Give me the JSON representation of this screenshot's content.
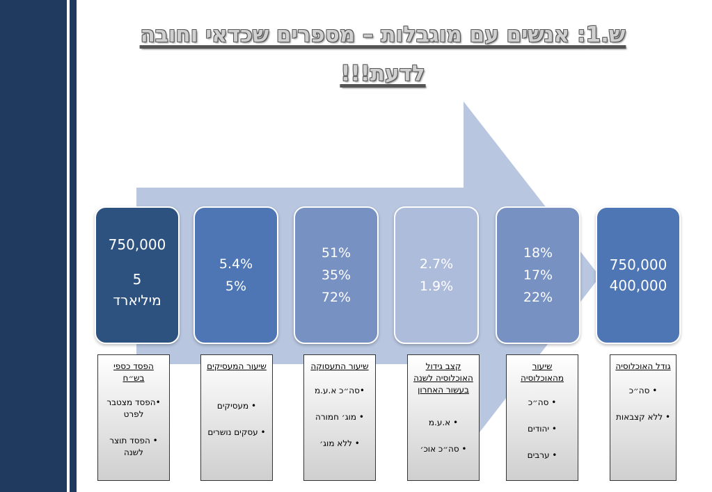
{
  "title": "ש.1: אנשים עם מוגבלות – מספרים שכדאי וחובה לדעת!!!",
  "colors": {
    "left_bar": "#1f3a5e",
    "arrow": "#b8c6e0",
    "box_dark": "#2e527f",
    "box_mid": "#4e76b4",
    "box_light": "#7691c2",
    "box_pale": "#aebcdc"
  },
  "boxes": [
    {
      "lines": [
        "750,000",
        "5",
        "מיליארד"
      ]
    },
    {
      "lines": [
        "5.4%",
        "5%"
      ]
    },
    {
      "lines": [
        "51%",
        "35%",
        "72%"
      ]
    },
    {
      "lines": [
        "2.7%",
        "1.9%"
      ]
    },
    {
      "lines": [
        "18%",
        "17%",
        "22%"
      ]
    },
    {
      "lines": [
        "750,000",
        "400,000"
      ]
    }
  ],
  "labels": [
    {
      "head": "הפסד כספי בש״ח",
      "bullets": [
        "•הפסד מצטבר לפרט",
        "• הפסד תוצר לשנה"
      ]
    },
    {
      "head": "שיעור המעסיקים",
      "bullets": [
        "• מעסיקים",
        "• עסקים נושרים"
      ]
    },
    {
      "head": "שיעור התעסוקה",
      "bullets": [
        "•סה״כ א.ע.מ",
        "• מוג׳ חמורה",
        "• ללא מוג׳"
      ]
    },
    {
      "head": "קצב גידול האוכלוסיה לשנה בעשור האחרון",
      "bullets": [
        "• א.ע.מ",
        "• סה״כ אוכ׳"
      ]
    },
    {
      "head": "שיעור מהאוכלוסיה",
      "bullets": [
        "• סה״כ",
        "• יהודים",
        "• ערבים"
      ]
    },
    {
      "head": "גודל האוכלוסיה",
      "bullets": [
        "• סה״כ",
        "• ללא קצבאות"
      ]
    }
  ]
}
